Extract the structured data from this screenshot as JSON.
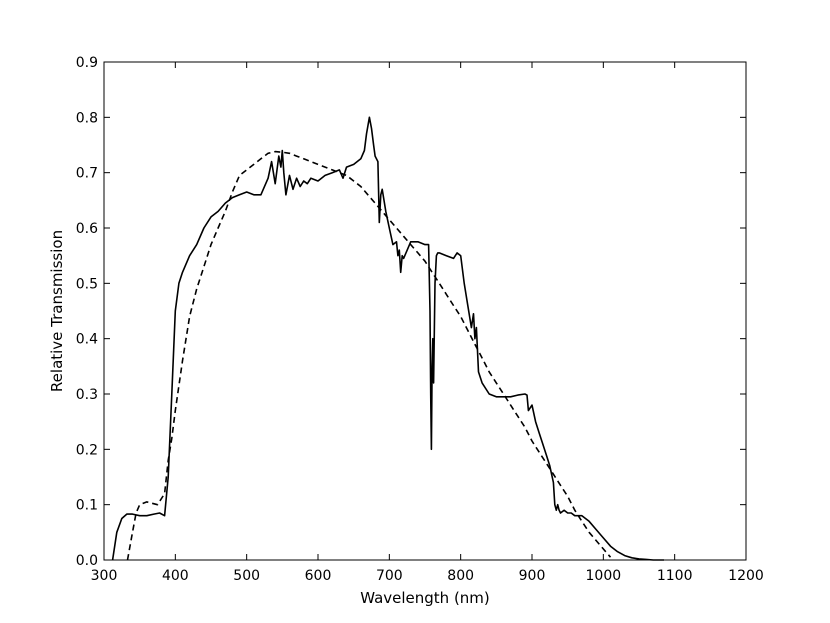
{
  "chart_data": {
    "type": "line",
    "title": "",
    "xlabel": "Wavelength (nm)",
    "ylabel": "Relative Transmission",
    "xlim": [
      300,
      1200
    ],
    "ylim": [
      0.0,
      0.9
    ],
    "x_ticks": [
      300,
      400,
      500,
      600,
      700,
      800,
      900,
      1000,
      1100,
      1200
    ],
    "y_ticks": [
      0.0,
      0.1,
      0.2,
      0.3,
      0.4,
      0.5,
      0.6,
      0.7,
      0.8,
      0.9
    ],
    "x_tick_labels": [
      "300",
      "400",
      "500",
      "600",
      "700",
      "800",
      "900",
      "1000",
      "1100",
      "1200"
    ],
    "y_tick_labels": [
      "0.0",
      "0.1",
      "0.2",
      "0.3",
      "0.4",
      "0.5",
      "0.6",
      "0.7",
      "0.8",
      "0.9"
    ],
    "grid": false,
    "legend": "none",
    "series": [
      {
        "style": "solid",
        "color": "#000000",
        "x": [
          312,
          318,
          325,
          332,
          340,
          350,
          360,
          370,
          378,
          385,
          390,
          395,
          400,
          405,
          410,
          420,
          430,
          440,
          450,
          460,
          470,
          480,
          490,
          500,
          510,
          520,
          530,
          535,
          540,
          545,
          548,
          550,
          552,
          555,
          560,
          565,
          570,
          575,
          580,
          585,
          590,
          600,
          610,
          620,
          630,
          635,
          640,
          650,
          660,
          665,
          668,
          672,
          675,
          678,
          680,
          684,
          686,
          688,
          690,
          695,
          700,
          705,
          710,
          712,
          714,
          716,
          718,
          720,
          725,
          730,
          740,
          750,
          755,
          757,
          758,
          759,
          760,
          761,
          762,
          764,
          766,
          768,
          770,
          780,
          790,
          795,
          800,
          805,
          810,
          815,
          818,
          820,
          822,
          825,
          830,
          840,
          850,
          860,
          870,
          880,
          890,
          893,
          895,
          900,
          905,
          910,
          915,
          920,
          925,
          930,
          932,
          934,
          936,
          938,
          940,
          945,
          950,
          955,
          960,
          970,
          980,
          990,
          1000,
          1010,
          1020,
          1030,
          1040,
          1050,
          1060,
          1070,
          1080,
          1085
        ],
        "y": [
          0.0,
          0.05,
          0.075,
          0.083,
          0.083,
          0.08,
          0.08,
          0.083,
          0.085,
          0.08,
          0.15,
          0.3,
          0.45,
          0.5,
          0.52,
          0.55,
          0.57,
          0.6,
          0.62,
          0.63,
          0.645,
          0.655,
          0.66,
          0.665,
          0.66,
          0.66,
          0.69,
          0.72,
          0.68,
          0.73,
          0.71,
          0.74,
          0.7,
          0.66,
          0.695,
          0.67,
          0.69,
          0.675,
          0.685,
          0.68,
          0.69,
          0.685,
          0.695,
          0.7,
          0.705,
          0.69,
          0.71,
          0.715,
          0.725,
          0.74,
          0.77,
          0.8,
          0.78,
          0.75,
          0.73,
          0.72,
          0.61,
          0.66,
          0.67,
          0.63,
          0.6,
          0.57,
          0.575,
          0.55,
          0.56,
          0.52,
          0.55,
          0.545,
          0.56,
          0.575,
          0.575,
          0.57,
          0.57,
          0.45,
          0.3,
          0.2,
          0.35,
          0.4,
          0.32,
          0.5,
          0.55,
          0.555,
          0.555,
          0.55,
          0.545,
          0.555,
          0.55,
          0.5,
          0.46,
          0.42,
          0.445,
          0.4,
          0.42,
          0.34,
          0.32,
          0.3,
          0.295,
          0.295,
          0.295,
          0.298,
          0.3,
          0.298,
          0.27,
          0.28,
          0.25,
          0.23,
          0.21,
          0.19,
          0.17,
          0.14,
          0.1,
          0.09,
          0.1,
          0.09,
          0.085,
          0.09,
          0.085,
          0.085,
          0.08,
          0.08,
          0.07,
          0.055,
          0.04,
          0.025,
          0.015,
          0.008,
          0.004,
          0.002,
          0.001,
          0.0,
          0.0,
          0.0
        ]
      },
      {
        "style": "dashed",
        "color": "#000000",
        "x": [
          333,
          340,
          345,
          350,
          360,
          375,
          385,
          390,
          395,
          400,
          410,
          420,
          430,
          440,
          450,
          460,
          470,
          480,
          490,
          500,
          510,
          520,
          530,
          540,
          550,
          560,
          570,
          580,
          590,
          600,
          610,
          620,
          630,
          640,
          650,
          660,
          670,
          680,
          690,
          700,
          710,
          720,
          730,
          740,
          750,
          760,
          770,
          780,
          790,
          800,
          810,
          820,
          830,
          840,
          850,
          860,
          870,
          880,
          890,
          900,
          910,
          920,
          930,
          940,
          950,
          960,
          970,
          980,
          990,
          1000,
          1010
        ],
        "y": [
          0.0,
          0.05,
          0.085,
          0.1,
          0.105,
          0.1,
          0.12,
          0.18,
          0.22,
          0.27,
          0.36,
          0.44,
          0.49,
          0.53,
          0.57,
          0.6,
          0.63,
          0.665,
          0.695,
          0.705,
          0.715,
          0.725,
          0.735,
          0.738,
          0.737,
          0.735,
          0.73,
          0.725,
          0.72,
          0.715,
          0.71,
          0.705,
          0.7,
          0.695,
          0.685,
          0.675,
          0.66,
          0.645,
          0.63,
          0.615,
          0.6,
          0.585,
          0.57,
          0.555,
          0.54,
          0.52,
          0.5,
          0.48,
          0.46,
          0.44,
          0.415,
          0.39,
          0.365,
          0.34,
          0.32,
          0.3,
          0.28,
          0.26,
          0.24,
          0.215,
          0.195,
          0.175,
          0.155,
          0.135,
          0.115,
          0.09,
          0.07,
          0.05,
          0.035,
          0.02,
          0.005
        ]
      }
    ]
  }
}
